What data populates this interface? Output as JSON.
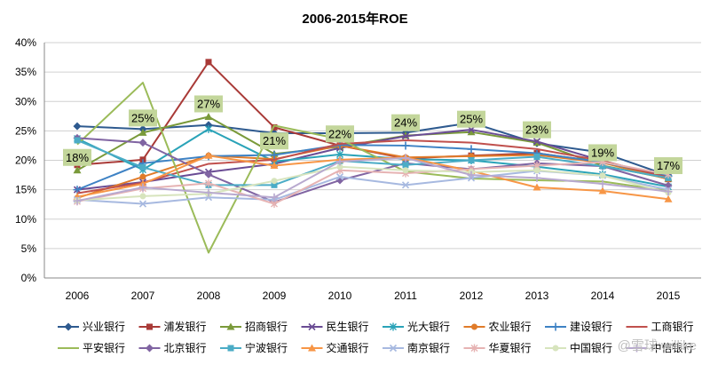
{
  "chart_data": {
    "type": "line",
    "title": "2006-2015年ROE",
    "xlabel": "",
    "ylabel": "",
    "categories": [
      "2006",
      "2007",
      "2008",
      "2009",
      "2010",
      "2011",
      "2012",
      "2013",
      "2014",
      "2015"
    ],
    "ylim": [
      0,
      40
    ],
    "yticks": [
      0,
      5,
      10,
      15,
      20,
      25,
      30,
      35,
      40
    ],
    "ytick_labels": [
      "0%",
      "5%",
      "10%",
      "15%",
      "20%",
      "25%",
      "30%",
      "35%",
      "40%"
    ],
    "grid": true,
    "legend_position": "bottom",
    "series": [
      {
        "name": "兴业银行",
        "color": "#2e5a8f",
        "marker": "diamond",
        "values": [
          25.8,
          25.3,
          26.0,
          24.6,
          24.6,
          24.7,
          26.4,
          22.9,
          21.3,
          17.4
        ]
      },
      {
        "name": "浦发银行",
        "color": "#a93a37",
        "marker": "square",
        "values": [
          19.2,
          20.1,
          36.7,
          25.6,
          22.5,
          20.3,
          20.8,
          21.2,
          19.7,
          16.8
        ]
      },
      {
        "name": "招商银行",
        "color": "#7a9a3a",
        "marker": "triangle",
        "values": [
          18.3,
          24.7,
          27.4,
          21.1,
          22.3,
          24.2,
          24.8,
          23.0,
          19.1,
          16.9
        ]
      },
      {
        "name": "民生银行",
        "color": "#6a4c94",
        "marker": "x",
        "values": [
          15.0,
          16.3,
          18.0,
          19.4,
          22.1,
          24.1,
          25.2,
          23.2,
          19.9,
          17.1
        ]
      },
      {
        "name": "光大银行",
        "color": "#2aa3b8",
        "marker": "star",
        "values": [
          23.7,
          18.4,
          25.3,
          19.8,
          21.0,
          20.2,
          20.0,
          18.9,
          17.6,
          15.5
        ]
      },
      {
        "name": "农业银行",
        "color": "#e07b29",
        "marker": "circle",
        "values": [
          13.6,
          17.2,
          20.8,
          20.2,
          22.5,
          20.5,
          20.7,
          20.9,
          19.6,
          16.8
        ]
      },
      {
        "name": "建设银行",
        "color": "#3e82c4",
        "marker": "plus",
        "values": [
          15.0,
          19.5,
          20.7,
          20.9,
          22.6,
          22.5,
          21.9,
          21.2,
          19.7,
          17.3
        ]
      },
      {
        "name": "工商银行",
        "color": "#c0504d",
        "marker": "none",
        "values": [
          14.4,
          16.2,
          19.4,
          20.1,
          22.8,
          23.4,
          23.0,
          21.9,
          19.9,
          17.1
        ]
      },
      {
        "name": "平安银行",
        "color": "#9bbb59",
        "marker": "none",
        "values": [
          22.7,
          33.2,
          4.3,
          25.9,
          23.6,
          18.1,
          16.9,
          16.6,
          16.4,
          14.8
        ]
      },
      {
        "name": "北京银行",
        "color": "#8064a2",
        "marker": "diamond",
        "values": [
          23.8,
          23.0,
          17.6,
          12.9,
          16.6,
          19.5,
          18.5,
          19.5,
          19.0,
          15.7
        ]
      },
      {
        "name": "宁波银行",
        "color": "#4bacc6",
        "marker": "square",
        "values": [
          23.4,
          18.8,
          15.8,
          15.8,
          19.9,
          19.2,
          20.0,
          20.6,
          19.0,
          17.0
        ]
      },
      {
        "name": "交通银行",
        "color": "#f79646",
        "marker": "triangle",
        "values": [
          13.8,
          16.0,
          20.8,
          19.1,
          20.1,
          20.5,
          18.2,
          15.4,
          14.8,
          13.4
        ]
      },
      {
        "name": "南京银行",
        "color": "#a7b9e0",
        "marker": "x",
        "values": [
          13.3,
          12.6,
          13.7,
          13.3,
          17.2,
          15.8,
          17.0,
          18.2,
          17.4,
          15.0
        ]
      },
      {
        "name": "华夏银行",
        "color": "#e6b3b3",
        "marker": "star",
        "values": [
          13.0,
          15.2,
          16.1,
          12.6,
          18.3,
          17.8,
          18.5,
          19.1,
          19.7,
          17.6
        ]
      },
      {
        "name": "中国银行",
        "color": "#d7e4bd",
        "marker": "circle",
        "values": [
          13.2,
          13.9,
          14.3,
          16.5,
          18.9,
          18.3,
          18.0,
          18.3,
          17.4,
          14.5
        ]
      },
      {
        "name": "中信银行",
        "color": "#b8a9cf",
        "marker": "plus",
        "values": [
          13.1,
          15.4,
          14.5,
          13.7,
          19.8,
          20.4,
          17.5,
          17.0,
          16.0,
          14.7
        ]
      }
    ],
    "annotations": [
      {
        "label": "18%",
        "x": "2006",
        "y": 18.3
      },
      {
        "label": "25%",
        "x": "2007",
        "y": 25.0
      },
      {
        "label": "27%",
        "x": "2008",
        "y": 27.4
      },
      {
        "label": "21%",
        "x": "2009",
        "y": 21.1
      },
      {
        "label": "22%",
        "x": "2010",
        "y": 22.3
      },
      {
        "label": "24%",
        "x": "2011",
        "y": 24.2
      },
      {
        "label": "25%",
        "x": "2012",
        "y": 24.8
      },
      {
        "label": "23%",
        "x": "2013",
        "y": 23.0
      },
      {
        "label": "19%",
        "x": "2014",
        "y": 19.1
      },
      {
        "label": "17%",
        "x": "2015",
        "y": 16.9
      }
    ],
    "annotation_color": "#c3d69b"
  },
  "watermark": "@雪球:willike"
}
